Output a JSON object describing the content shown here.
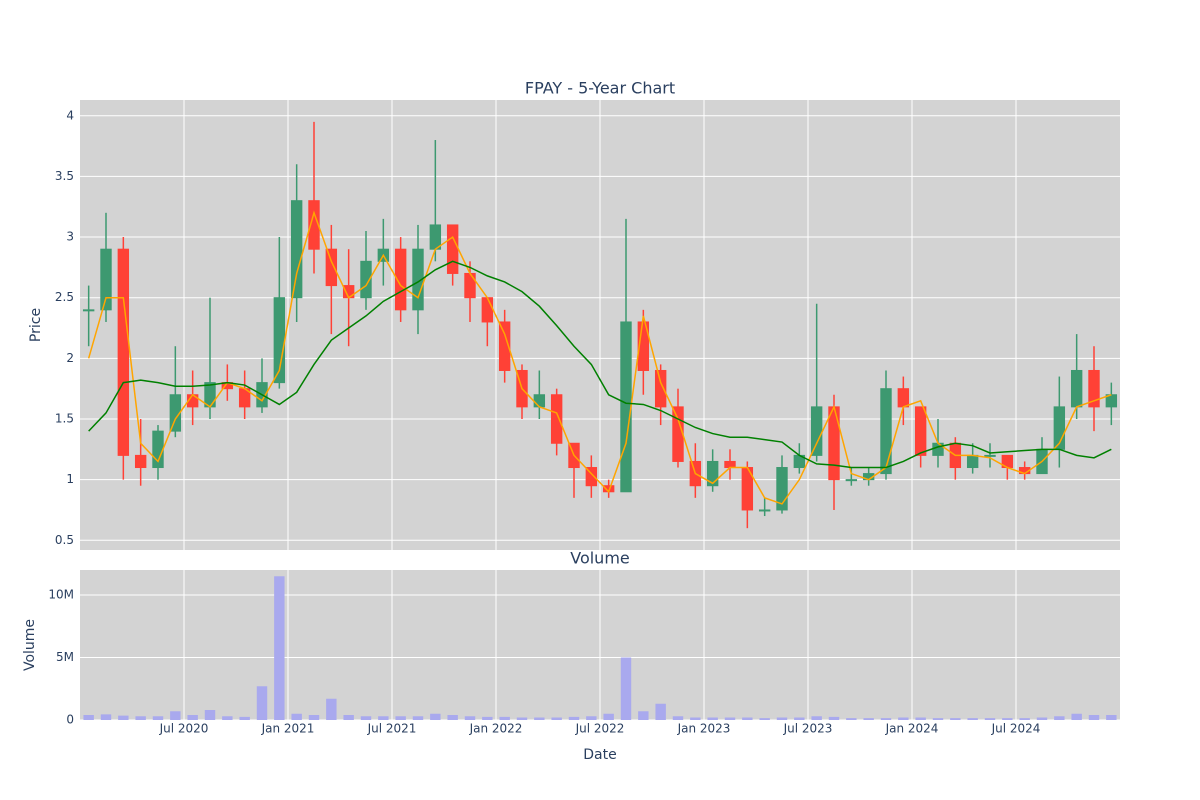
{
  "chart_data": [
    {
      "type": "candlestick",
      "title": "FPAY - 5-Year Chart",
      "y_label": "Price",
      "x": [
        "2020-01",
        "2020-02",
        "2020-03",
        "2020-04",
        "2020-05",
        "2020-06",
        "2020-07",
        "2020-08",
        "2020-09",
        "2020-10",
        "2020-11",
        "2020-12",
        "2021-01",
        "2021-02",
        "2021-03",
        "2021-04",
        "2021-05",
        "2021-06",
        "2021-07",
        "2021-08",
        "2021-09",
        "2021-10",
        "2021-11",
        "2021-12",
        "2022-01",
        "2022-02",
        "2022-03",
        "2022-04",
        "2022-05",
        "2022-06",
        "2022-07",
        "2022-08",
        "2022-09",
        "2022-10",
        "2022-11",
        "2022-12",
        "2023-01",
        "2023-02",
        "2023-03",
        "2023-04",
        "2023-05",
        "2023-06",
        "2023-07",
        "2023-08",
        "2023-09",
        "2023-10",
        "2023-11",
        "2023-12",
        "2024-01",
        "2024-02",
        "2024-03",
        "2024-04",
        "2024-05",
        "2024-06",
        "2024-07",
        "2024-08",
        "2024-09",
        "2024-10",
        "2024-11",
        "2024-12"
      ],
      "open": [
        2.4,
        2.4,
        2.9,
        1.2,
        1.1,
        1.4,
        1.7,
        1.6,
        1.8,
        1.75,
        1.6,
        1.8,
        2.5,
        3.3,
        2.9,
        2.6,
        2.5,
        2.8,
        2.9,
        2.4,
        2.9,
        3.1,
        2.7,
        2.5,
        2.3,
        1.9,
        1.6,
        1.7,
        1.3,
        1.1,
        0.95,
        0.9,
        2.3,
        1.9,
        1.6,
        1.15,
        0.95,
        1.15,
        1.1,
        0.75,
        0.75,
        1.1,
        1.2,
        1.6,
        1.0,
        1.0,
        1.05,
        1.75,
        1.6,
        1.2,
        1.3,
        1.1,
        1.2,
        1.2,
        1.1,
        1.05,
        1.25,
        1.6,
        1.9,
        1.6
      ],
      "high": [
        2.6,
        3.2,
        3.0,
        1.5,
        1.45,
        2.1,
        1.9,
        2.5,
        1.95,
        1.9,
        2.0,
        3.0,
        3.6,
        3.95,
        3.1,
        2.9,
        3.05,
        3.15,
        3.0,
        3.1,
        3.8,
        3.1,
        2.8,
        2.5,
        2.4,
        1.95,
        1.9,
        1.75,
        1.3,
        1.2,
        1.0,
        3.15,
        2.4,
        1.95,
        1.75,
        1.3,
        1.25,
        1.25,
        1.15,
        0.85,
        1.2,
        1.3,
        2.45,
        1.7,
        1.1,
        1.1,
        1.9,
        1.85,
        1.6,
        1.5,
        1.35,
        1.3,
        1.3,
        1.2,
        1.15,
        1.35,
        1.85,
        2.2,
        2.1,
        1.8
      ],
      "low": [
        2.1,
        2.3,
        1.0,
        0.95,
        1.0,
        1.35,
        1.45,
        1.5,
        1.65,
        1.5,
        1.55,
        1.75,
        2.3,
        2.7,
        2.2,
        2.1,
        2.4,
        2.6,
        2.3,
        2.2,
        2.8,
        2.6,
        2.3,
        2.1,
        1.8,
        1.5,
        1.5,
        1.2,
        0.85,
        0.85,
        0.85,
        0.9,
        1.7,
        1.45,
        1.1,
        0.85,
        0.9,
        1.0,
        0.6,
        0.7,
        0.72,
        1.05,
        1.15,
        0.75,
        0.95,
        0.95,
        1.0,
        1.45,
        1.1,
        1.1,
        1.0,
        1.05,
        1.1,
        1.0,
        1.0,
        1.05,
        1.1,
        1.5,
        1.4,
        1.45
      ],
      "close": [
        2.4,
        2.9,
        1.2,
        1.1,
        1.4,
        1.7,
        1.6,
        1.8,
        1.75,
        1.6,
        1.8,
        2.5,
        3.3,
        2.9,
        2.6,
        2.5,
        2.8,
        2.9,
        2.4,
        2.9,
        3.1,
        2.7,
        2.5,
        2.3,
        1.9,
        1.6,
        1.7,
        1.3,
        1.1,
        0.95,
        0.9,
        2.3,
        1.9,
        1.6,
        1.15,
        0.95,
        1.15,
        1.1,
        0.75,
        0.75,
        1.1,
        1.2,
        1.6,
        1.0,
        1.0,
        1.05,
        1.75,
        1.6,
        1.2,
        1.3,
        1.1,
        1.2,
        1.2,
        1.1,
        1.05,
        1.25,
        1.6,
        1.9,
        1.6,
        1.7
      ],
      "increasing_color": "#3d9970",
      "decreasing_color": "#ff4136",
      "series": [
        {
          "color": "#ffa500",
          "values": [
            2.0,
            2.5,
            2.5,
            1.3,
            1.15,
            1.5,
            1.7,
            1.6,
            1.8,
            1.75,
            1.65,
            1.9,
            2.7,
            3.2,
            2.8,
            2.5,
            2.6,
            2.85,
            2.6,
            2.5,
            2.9,
            3.0,
            2.7,
            2.5,
            2.2,
            1.75,
            1.6,
            1.55,
            1.2,
            1.05,
            0.9,
            1.3,
            2.35,
            1.8,
            1.5,
            1.05,
            0.97,
            1.1,
            1.1,
            0.85,
            0.8,
            1.0,
            1.3,
            1.6,
            1.05,
            1.0,
            1.1,
            1.6,
            1.65,
            1.3,
            1.2,
            1.2,
            1.18,
            1.1,
            1.05,
            1.15,
            1.3,
            1.6,
            1.65,
            1.7
          ]
        },
        {
          "color": "#008000",
          "values": [
            1.4,
            1.55,
            1.8,
            1.82,
            1.8,
            1.77,
            1.77,
            1.78,
            1.8,
            1.78,
            1.7,
            1.62,
            1.72,
            1.95,
            2.15,
            2.25,
            2.35,
            2.47,
            2.55,
            2.63,
            2.73,
            2.8,
            2.75,
            2.68,
            2.63,
            2.55,
            2.43,
            2.27,
            2.1,
            1.95,
            1.7,
            1.63,
            1.62,
            1.57,
            1.5,
            1.43,
            1.38,
            1.35,
            1.35,
            1.33,
            1.31,
            1.2,
            1.13,
            1.12,
            1.1,
            1.1,
            1.1,
            1.15,
            1.22,
            1.27,
            1.3,
            1.28,
            1.22,
            1.23,
            1.24,
            1.25,
            1.25,
            1.2,
            1.18,
            1.25
          ]
        }
      ],
      "xlim": [
        "2020-01",
        "2025-01"
      ],
      "ylim": [
        0.42,
        4.13
      ],
      "yticks": [
        0.5,
        1,
        1.5,
        2,
        2.5,
        3,
        3.5,
        4
      ],
      "grid": true
    },
    {
      "type": "bar",
      "title": "Volume",
      "x_label": "Date",
      "y_label": "Volume",
      "x": [
        "2020-01",
        "2020-02",
        "2020-03",
        "2020-04",
        "2020-05",
        "2020-06",
        "2020-07",
        "2020-08",
        "2020-09",
        "2020-10",
        "2020-11",
        "2020-12",
        "2021-01",
        "2021-02",
        "2021-03",
        "2021-04",
        "2021-05",
        "2021-06",
        "2021-07",
        "2021-08",
        "2021-09",
        "2021-10",
        "2021-11",
        "2021-12",
        "2022-01",
        "2022-02",
        "2022-03",
        "2022-04",
        "2022-05",
        "2022-06",
        "2022-07",
        "2022-08",
        "2022-09",
        "2022-10",
        "2022-11",
        "2022-12",
        "2023-01",
        "2023-02",
        "2023-03",
        "2023-04",
        "2023-05",
        "2023-06",
        "2023-07",
        "2023-08",
        "2023-09",
        "2023-10",
        "2023-11",
        "2023-12",
        "2024-01",
        "2024-02",
        "2024-03",
        "2024-04",
        "2024-05",
        "2024-06",
        "2024-07",
        "2024-08",
        "2024-09",
        "2024-10",
        "2024-11",
        "2024-12"
      ],
      "values": [
        400000,
        450000,
        350000,
        300000,
        300000,
        700000,
        400000,
        800000,
        300000,
        250000,
        2700000,
        11500000,
        500000,
        400000,
        1700000,
        400000,
        300000,
        300000,
        300000,
        300000,
        500000,
        400000,
        300000,
        250000,
        250000,
        200000,
        200000,
        200000,
        250000,
        300000,
        500000,
        5000000,
        700000,
        1300000,
        300000,
        200000,
        200000,
        200000,
        200000,
        150000,
        200000,
        200000,
        300000,
        250000,
        150000,
        150000,
        150000,
        200000,
        200000,
        150000,
        150000,
        150000,
        150000,
        150000,
        150000,
        200000,
        300000,
        500000,
        400000,
        400000
      ],
      "color": "#a9a9ee",
      "xlim": [
        "2020-01",
        "2025-01"
      ],
      "xticks": [
        {
          "value": "2020-07",
          "label": "Jul 2020"
        },
        {
          "value": "2021-01",
          "label": "Jan 2021"
        },
        {
          "value": "2021-07",
          "label": "Jul 2021"
        },
        {
          "value": "2022-01",
          "label": "Jan 2022"
        },
        {
          "value": "2022-07",
          "label": "Jul 2022"
        },
        {
          "value": "2023-01",
          "label": "Jan 2023"
        },
        {
          "value": "2023-07",
          "label": "Jul 2023"
        },
        {
          "value": "2024-01",
          "label": "Jan 2024"
        },
        {
          "value": "2024-07",
          "label": "Jul 2024"
        }
      ],
      "ylim": [
        0,
        12000000
      ],
      "yticks": [
        0,
        {
          "value": 5000000,
          "label": "5M"
        },
        {
          "value": 10000000,
          "label": "10M"
        }
      ],
      "grid": true
    }
  ]
}
